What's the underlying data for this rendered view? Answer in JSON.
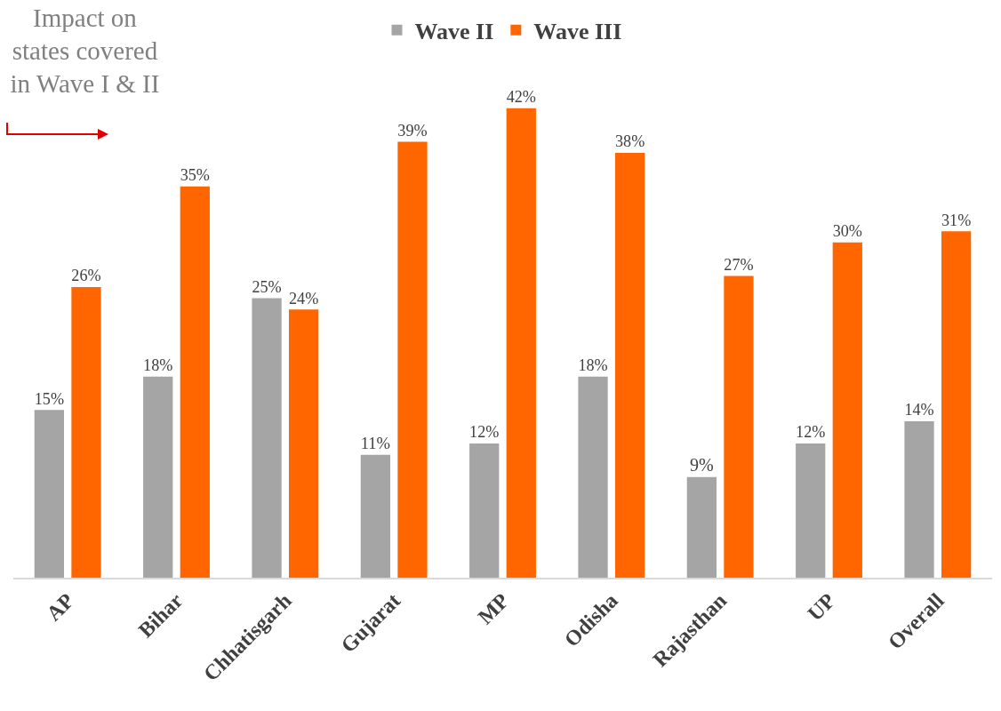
{
  "chart_data": {
    "type": "bar",
    "categories": [
      "AP",
      "Bihar",
      "Chhatisgarh",
      "Gujarat",
      "MP",
      "Odisha",
      "Rajasthan",
      "UP",
      "Overall"
    ],
    "series": [
      {
        "name": "Wave II",
        "color": "#a5a5a5",
        "values": [
          15,
          18,
          25,
          11,
          12,
          18,
          9,
          12,
          14
        ],
        "value_labels": [
          "15%",
          "18%",
          "25%",
          "11%",
          "12%",
          "18%",
          "9%",
          "12%",
          "14%"
        ]
      },
      {
        "name": "Wave III",
        "color": "#ff6600",
        "values": [
          26,
          35,
          24,
          39,
          42,
          38,
          27,
          30,
          31
        ],
        "value_labels": [
          "26%",
          "35%",
          "24%",
          "39%",
          "42%",
          "38%",
          "27%",
          "30%",
          "31%"
        ]
      }
    ],
    "annotations": [
      "Impact on states covered in Wave I & II"
    ],
    "legend": "top",
    "grid": false
  }
}
